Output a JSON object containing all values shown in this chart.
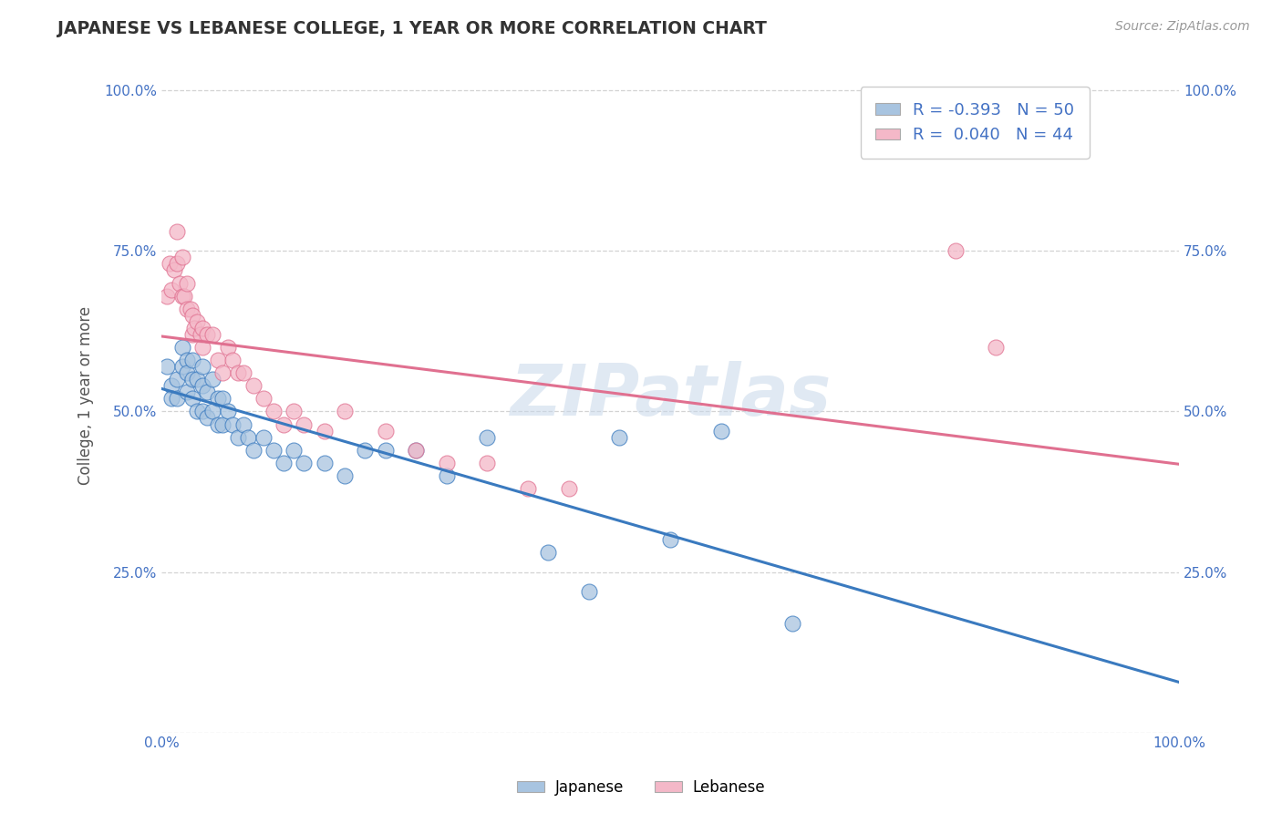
{
  "title": "JAPANESE VS LEBANESE COLLEGE, 1 YEAR OR MORE CORRELATION CHART",
  "source_text": "Source: ZipAtlas.com",
  "ylabel": "College, 1 year or more",
  "xlim": [
    0.0,
    1.0
  ],
  "ylim": [
    0.0,
    1.05
  ],
  "legend_r1_val": "-0.393",
  "legend_n1_val": "50",
  "legend_r2_val": "0.040",
  "legend_n2_val": "44",
  "japanese_color": "#a8c4e0",
  "lebanese_color": "#f4b8c8",
  "line1_color": "#3a7abf",
  "line2_color": "#e07090",
  "japanese_x": [
    0.005,
    0.01,
    0.01,
    0.015,
    0.015,
    0.02,
    0.02,
    0.025,
    0.025,
    0.025,
    0.03,
    0.03,
    0.03,
    0.035,
    0.035,
    0.04,
    0.04,
    0.04,
    0.045,
    0.045,
    0.05,
    0.05,
    0.055,
    0.055,
    0.06,
    0.06,
    0.065,
    0.07,
    0.075,
    0.08,
    0.085,
    0.09,
    0.1,
    0.11,
    0.12,
    0.13,
    0.14,
    0.16,
    0.18,
    0.2,
    0.22,
    0.25,
    0.28,
    0.32,
    0.38,
    0.42,
    0.45,
    0.5,
    0.55,
    0.62
  ],
  "japanese_y": [
    0.57,
    0.54,
    0.52,
    0.55,
    0.52,
    0.6,
    0.57,
    0.58,
    0.56,
    0.53,
    0.58,
    0.55,
    0.52,
    0.55,
    0.5,
    0.57,
    0.54,
    0.5,
    0.53,
    0.49,
    0.55,
    0.5,
    0.52,
    0.48,
    0.52,
    0.48,
    0.5,
    0.48,
    0.46,
    0.48,
    0.46,
    0.44,
    0.46,
    0.44,
    0.42,
    0.44,
    0.42,
    0.42,
    0.4,
    0.44,
    0.44,
    0.44,
    0.4,
    0.46,
    0.28,
    0.22,
    0.46,
    0.3,
    0.47,
    0.17
  ],
  "lebanese_x": [
    0.005,
    0.008,
    0.01,
    0.012,
    0.015,
    0.015,
    0.018,
    0.02,
    0.02,
    0.022,
    0.025,
    0.025,
    0.028,
    0.03,
    0.03,
    0.032,
    0.035,
    0.038,
    0.04,
    0.04,
    0.045,
    0.05,
    0.055,
    0.06,
    0.065,
    0.07,
    0.075,
    0.08,
    0.09,
    0.1,
    0.11,
    0.12,
    0.13,
    0.14,
    0.16,
    0.18,
    0.22,
    0.25,
    0.28,
    0.32,
    0.36,
    0.4,
    0.78,
    0.82
  ],
  "lebanese_y": [
    0.68,
    0.73,
    0.69,
    0.72,
    0.78,
    0.73,
    0.7,
    0.74,
    0.68,
    0.68,
    0.7,
    0.66,
    0.66,
    0.65,
    0.62,
    0.63,
    0.64,
    0.62,
    0.63,
    0.6,
    0.62,
    0.62,
    0.58,
    0.56,
    0.6,
    0.58,
    0.56,
    0.56,
    0.54,
    0.52,
    0.5,
    0.48,
    0.5,
    0.48,
    0.47,
    0.5,
    0.47,
    0.44,
    0.42,
    0.42,
    0.38,
    0.38,
    0.75,
    0.6
  ],
  "watermark": "ZIPatlas",
  "bg_color": "#ffffff",
  "grid_color": "#c8c8c8"
}
